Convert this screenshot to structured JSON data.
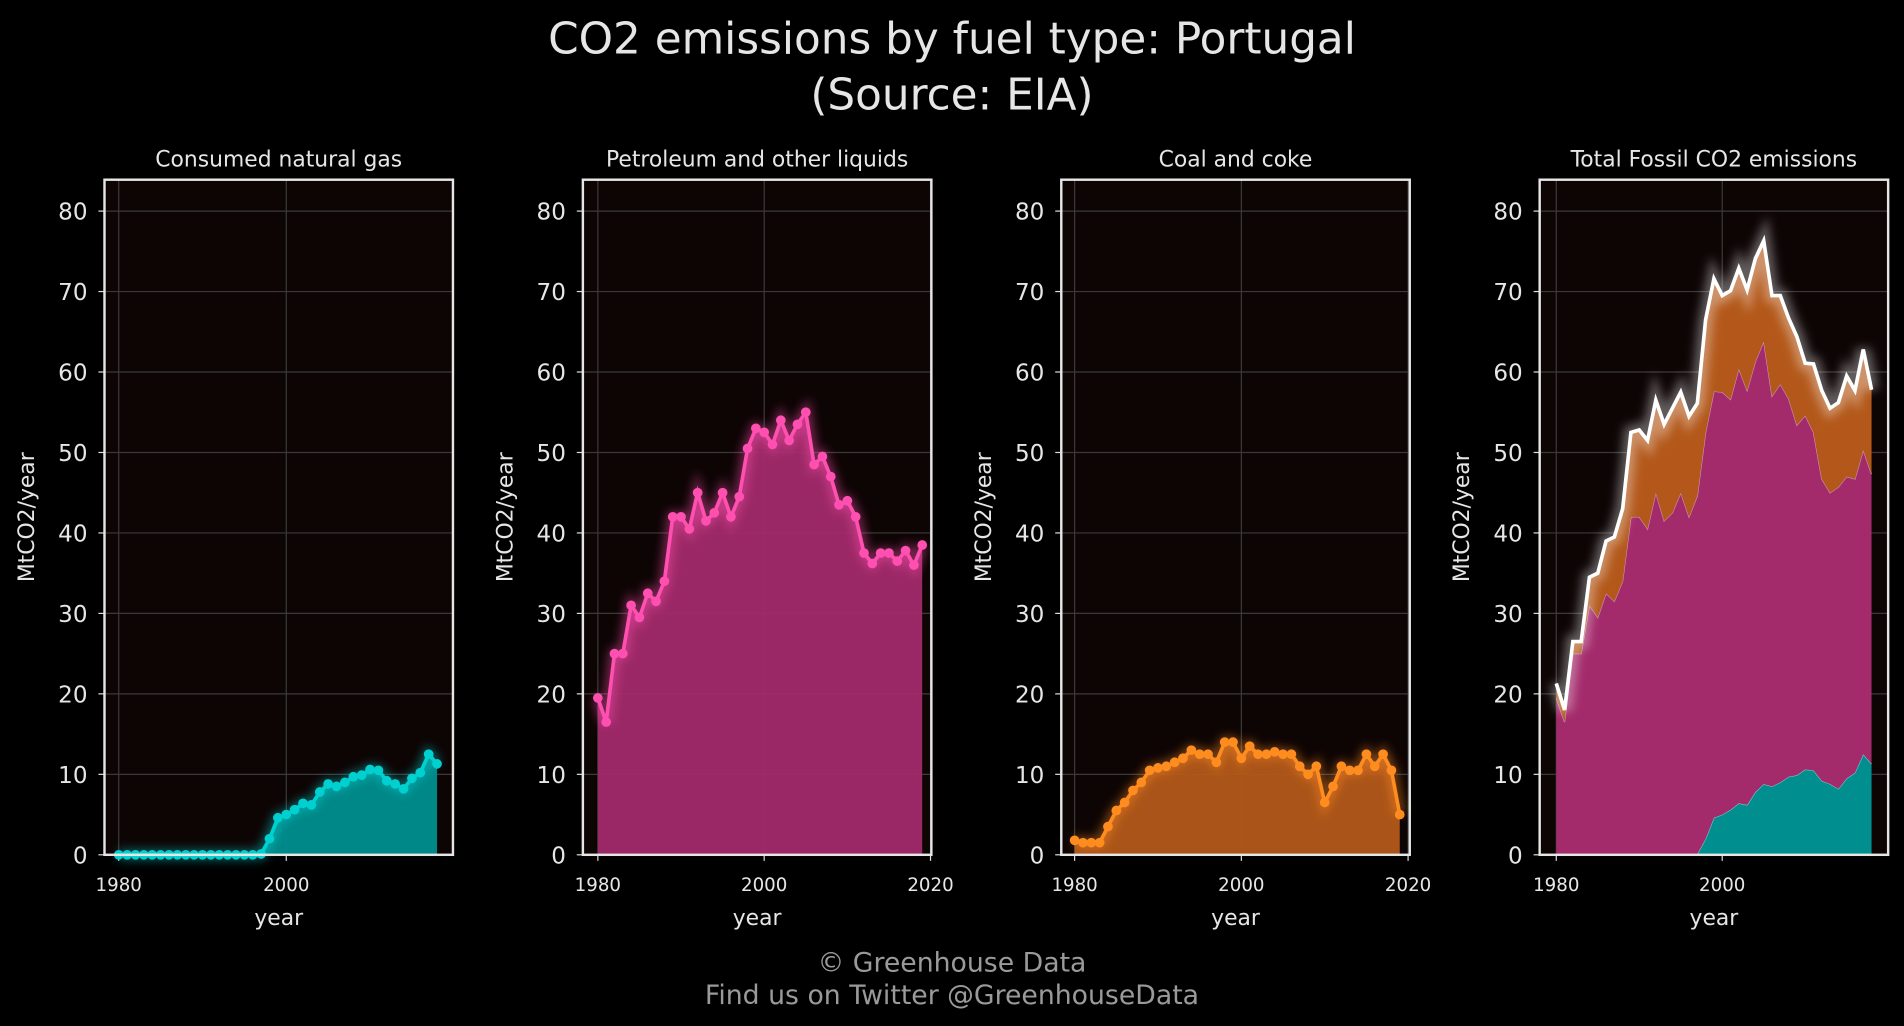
{
  "title": [
    "CO2 emissions by fuel type: Portugal",
    "(Source: EIA)"
  ],
  "footer": [
    "© Greenhouse Data",
    "Find us on Twitter @GreenhouseData"
  ],
  "chart_data": [
    {
      "type": "area",
      "title": "Consumed natural gas",
      "xlabel": "year",
      "ylabel": "MtCO2/year",
      "x": [
        1980,
        1981,
        1982,
        1983,
        1984,
        1985,
        1986,
        1987,
        1988,
        1989,
        1990,
        1991,
        1992,
        1993,
        1994,
        1995,
        1996,
        1997,
        1998,
        1999,
        2000,
        2001,
        2002,
        2003,
        2004,
        2005,
        2006,
        2007,
        2008,
        2009,
        2010,
        2011,
        2012,
        2013,
        2014,
        2015,
        2016,
        2017,
        2018
      ],
      "values": [
        0,
        0,
        0,
        0,
        0,
        0,
        0,
        0,
        0,
        0,
        0,
        0,
        0,
        0,
        0,
        0,
        0,
        0.1,
        2,
        4.6,
        5,
        5.6,
        6.4,
        6.2,
        7.8,
        8.8,
        8.5,
        9,
        9.7,
        9.9,
        10.6,
        10.5,
        9.2,
        8.8,
        8.2,
        9.5,
        10.2,
        12.5,
        11.3
      ],
      "color": "#00d0d0",
      "fill": "#008e8e",
      "xlim": [
        1978.3,
        2019.9
      ],
      "xticks": [
        1980,
        2000
      ],
      "ylim": [
        0,
        83.9
      ],
      "yticks": [
        0,
        10,
        20,
        30,
        40,
        50,
        60,
        70,
        80
      ],
      "grid": true
    },
    {
      "type": "area",
      "title": "Petroleum and other liquids",
      "xlabel": "year",
      "ylabel": "MtCO2/year",
      "x": [
        1980,
        1981,
        1982,
        1983,
        1984,
        1985,
        1986,
        1987,
        1988,
        1989,
        1990,
        1991,
        1992,
        1993,
        1994,
        1995,
        1996,
        1997,
        1998,
        1999,
        2000,
        2001,
        2002,
        2003,
        2004,
        2005,
        2006,
        2007,
        2008,
        2009,
        2010,
        2011,
        2012,
        2013,
        2014,
        2015,
        2016,
        2017,
        2018,
        2019
      ],
      "values": [
        19.5,
        16.5,
        25,
        25,
        31,
        29.5,
        32.5,
        31.5,
        34,
        42,
        42,
        40.5,
        45,
        41.5,
        42.5,
        45,
        42,
        44.5,
        50.5,
        53,
        52.5,
        51,
        54,
        51.5,
        53.5,
        55,
        48.5,
        49.5,
        47,
        43.5,
        44,
        42,
        37.5,
        36.2,
        37.5,
        37.5,
        36.5,
        37.8,
        36,
        38.5
      ],
      "color": "#ff4fb0",
      "fill": "#a32a6b",
      "xlim": [
        1978.2,
        2020.1
      ],
      "xticks": [
        1980,
        2000,
        2020
      ],
      "ylim": [
        0,
        83.9
      ],
      "yticks": [
        0,
        10,
        20,
        30,
        40,
        50,
        60,
        70,
        80
      ],
      "grid": true
    },
    {
      "type": "area",
      "title": "Coal and coke",
      "xlabel": "year",
      "ylabel": "MtCO2/year",
      "x": [
        1980,
        1981,
        1982,
        1983,
        1984,
        1985,
        1986,
        1987,
        1988,
        1989,
        1990,
        1991,
        1992,
        1993,
        1994,
        1995,
        1996,
        1997,
        1998,
        1999,
        2000,
        2001,
        2002,
        2003,
        2004,
        2005,
        2006,
        2007,
        2008,
        2009,
        2010,
        2011,
        2012,
        2013,
        2014,
        2015,
        2016,
        2017,
        2018,
        2019
      ],
      "values": [
        1.8,
        1.5,
        1.5,
        1.5,
        3.5,
        5.5,
        6.5,
        8,
        9,
        10.5,
        10.8,
        11,
        11.5,
        12,
        13,
        12.5,
        12.5,
        11.5,
        14,
        14,
        12,
        13.5,
        12.5,
        12.5,
        12.8,
        12.5,
        12.5,
        11,
        10,
        11,
        6.5,
        8.5,
        11,
        10.5,
        10.5,
        12.5,
        11,
        12.5,
        10.5,
        5
      ],
      "color": "#ff8c1e",
      "fill": "#b3581a",
      "xlim": [
        1978.4,
        2020.2
      ],
      "xticks": [
        1980,
        2000,
        2020
      ],
      "ylim": [
        0,
        83.9
      ],
      "yticks": [
        0,
        10,
        20,
        30,
        40,
        50,
        60,
        70,
        80
      ],
      "grid": true
    },
    {
      "type": "stacked_area",
      "title": "Total Fossil CO2 emissions",
      "xlabel": "year",
      "ylabel": "MtCO2/year",
      "x": [
        1980,
        1981,
        1982,
        1983,
        1984,
        1985,
        1986,
        1987,
        1988,
        1989,
        1990,
        1991,
        1992,
        1993,
        1994,
        1995,
        1996,
        1997,
        1998,
        1999,
        2000,
        2001,
        2002,
        2003,
        2004,
        2005,
        2006,
        2007,
        2008,
        2009,
        2010,
        2011,
        2012,
        2013,
        2014,
        2015,
        2016,
        2017,
        2018
      ],
      "series": [
        {
          "color": "#008e8e",
          "values": [
            0,
            0,
            0,
            0,
            0,
            0,
            0,
            0,
            0,
            0,
            0,
            0,
            0,
            0,
            0,
            0,
            0,
            0.1,
            2,
            4.6,
            5,
            5.6,
            6.4,
            6.2,
            7.8,
            8.8,
            8.5,
            9,
            9.7,
            9.9,
            10.6,
            10.5,
            9.2,
            8.8,
            8.2,
            9.5,
            10.2,
            12.5,
            11.3
          ]
        },
        {
          "color": "#a32a6b",
          "values": [
            19.5,
            16.5,
            25,
            25,
            31,
            29.5,
            32.5,
            31.5,
            34,
            42,
            42,
            40.5,
            45,
            41.5,
            42.5,
            45,
            42,
            44.5,
            50.5,
            53,
            52.5,
            51,
            54,
            51.5,
            53.5,
            55,
            48.5,
            49.5,
            47,
            43.5,
            44,
            42,
            37.5,
            36.2,
            37.5,
            37.5,
            36.5,
            37.8,
            36
          ]
        },
        {
          "color": "#b3581a",
          "values": [
            1.8,
            1.5,
            1.5,
            1.5,
            3.5,
            5.5,
            6.5,
            8,
            9,
            10.5,
            10.8,
            11,
            11.5,
            12,
            13,
            12.5,
            12.5,
            11.5,
            14,
            14,
            12,
            13.5,
            12.5,
            12.5,
            12.8,
            12.5,
            12.5,
            11,
            10,
            11,
            6.5,
            8.5,
            11,
            10.5,
            10.5,
            12.5,
            11,
            12.5,
            10.5
          ]
        }
      ],
      "total_color": "#ffffff",
      "xlim": [
        1978,
        2020
      ],
      "xticks": [
        1980,
        2000
      ],
      "ylim": [
        0,
        83.9
      ],
      "yticks": [
        0,
        10,
        20,
        30,
        40,
        50,
        60,
        70,
        80
      ],
      "grid": true
    }
  ]
}
